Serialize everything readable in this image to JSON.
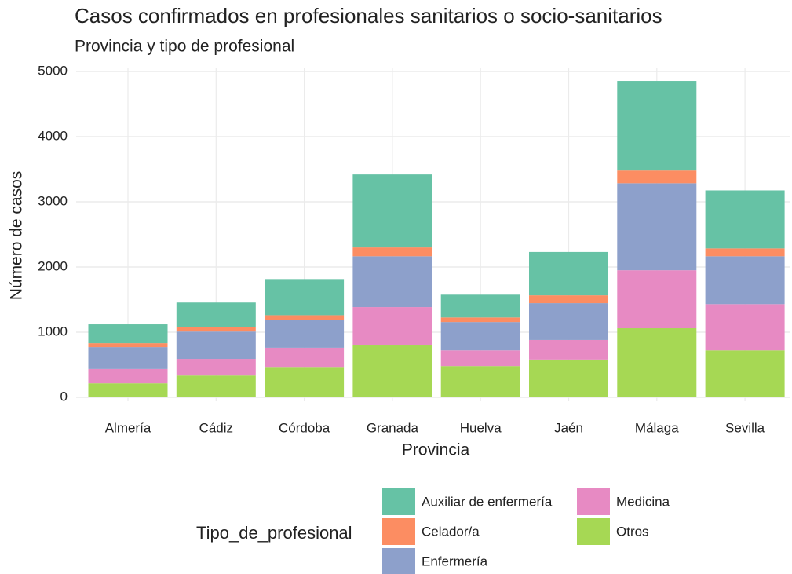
{
  "chart_data": {
    "type": "stacked_bar",
    "title": "Casos confirmados en profesionales sanitarios o socio-sanitarios",
    "subtitle": "Provincia y tipo de profesional",
    "x_label": "Provincia",
    "y_label": "Número de casos",
    "legend_title": "Tipo_de_profesional",
    "legend_position": "bottom",
    "grid": true,
    "categories": [
      "Almería",
      "Cádiz",
      "Córdoba",
      "Granada",
      "Huelva",
      "Jaén",
      "Málaga",
      "Sevilla"
    ],
    "series": [
      {
        "name": "Auxiliar de enfermería",
        "color": "#66c2a5",
        "values": [
          290,
          375,
          555,
          1120,
          350,
          665,
          1375,
          890
        ]
      },
      {
        "name": "Celador/a",
        "color": "#fc8d62",
        "values": [
          60,
          70,
          70,
          135,
          70,
          120,
          195,
          120
        ]
      },
      {
        "name": "Enfermería",
        "color": "#8da0cb",
        "values": [
          335,
          420,
          430,
          780,
          435,
          565,
          1335,
          735
        ]
      },
      {
        "name": "Medicina",
        "color": "#e78ac3",
        "values": [
          220,
          255,
          305,
          590,
          240,
          300,
          890,
          710
        ]
      },
      {
        "name": "Otros",
        "color": "#a6d854",
        "values": [
          215,
          335,
          455,
          795,
          480,
          580,
          1060,
          720
        ]
      }
    ],
    "ylim": [
      0,
      5000
    ],
    "yticks": [
      0,
      1000,
      2000,
      3000,
      4000,
      5000
    ]
  }
}
